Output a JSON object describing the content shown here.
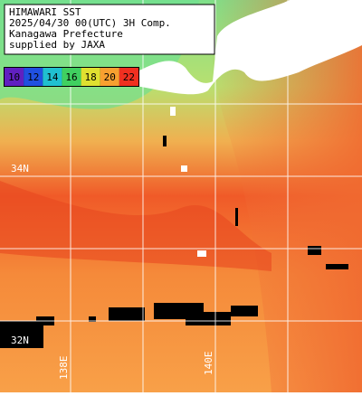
{
  "header": {
    "lines": [
      "HIMAWARI SST",
      "2025/04/30 00(UTC) 3H Comp.",
      "Kanagawa Prefecture",
      "supplied by JAXA"
    ]
  },
  "colorbar": {
    "labels": [
      10,
      12,
      14,
      16,
      18,
      20,
      22
    ]
  },
  "map": {
    "lat_labels": [
      "34N",
      "32N"
    ],
    "lon_labels": [
      "138E",
      "140E"
    ]
  }
}
